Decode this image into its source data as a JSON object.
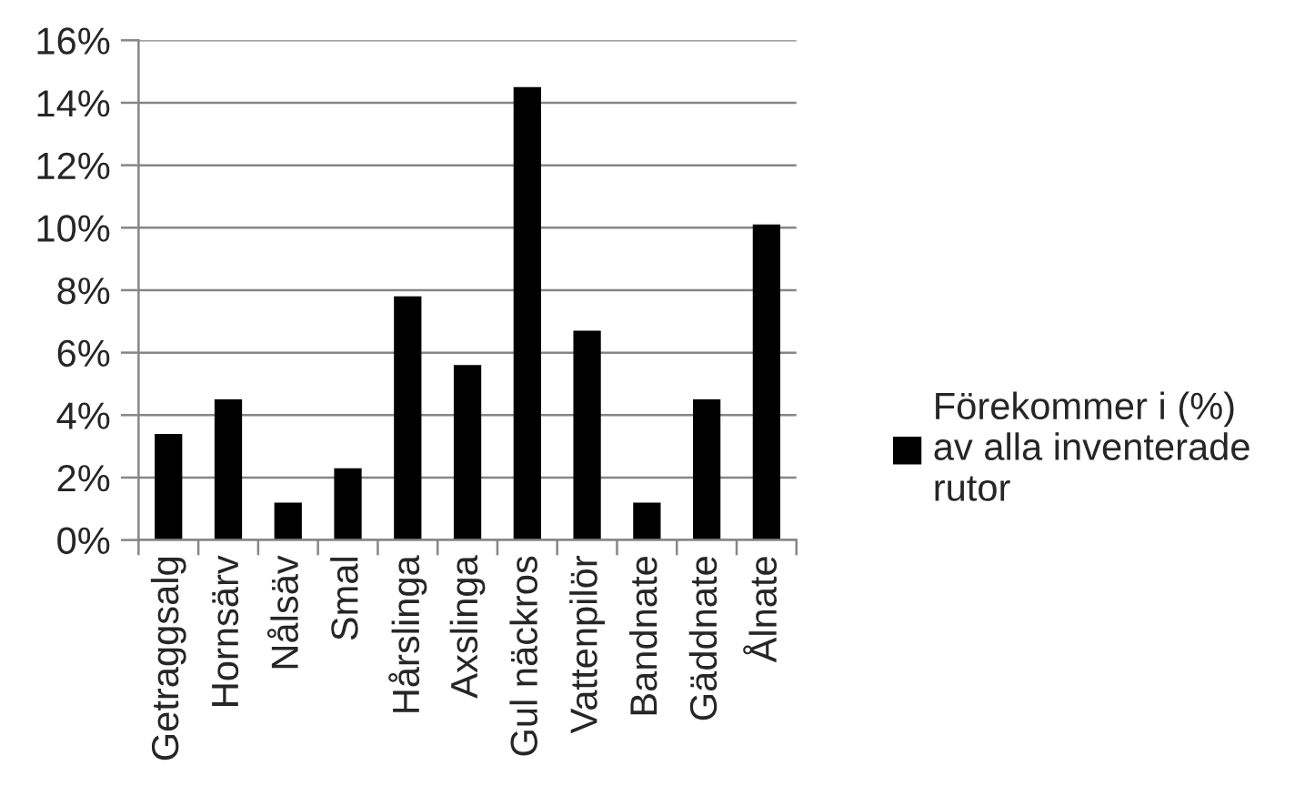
{
  "chart_data": {
    "type": "bar",
    "categories": [
      "Getraggsalg",
      "Hornsärv",
      "Nålsäv",
      "Smal",
      "Hårslinga",
      "Axslinga",
      "Gul näckros",
      "Vattenpilör",
      "Bandnate",
      "Gäddnate",
      "Ålnate"
    ],
    "series": [
      {
        "name": "Förekommer i (%) av alla inventerade rutor",
        "color": "#000000",
        "values": [
          3.4,
          4.5,
          1.2,
          2.3,
          7.8,
          5.6,
          14.5,
          6.7,
          1.2,
          4.5,
          10.1
        ]
      }
    ],
    "ylim": [
      0,
      16
    ],
    "yticks": [
      {
        "value": 0,
        "label": "0%"
      },
      {
        "value": 2,
        "label": "2%"
      },
      {
        "value": 4,
        "label": "4%"
      },
      {
        "value": 6,
        "label": "6%"
      },
      {
        "value": 8,
        "label": "8%"
      },
      {
        "value": 10,
        "label": "10%"
      },
      {
        "value": 12,
        "label": "12%"
      },
      {
        "value": 14,
        "label": "14%"
      },
      {
        "value": 16,
        "label": "16%"
      }
    ],
    "grid": "y",
    "legend": "right"
  }
}
